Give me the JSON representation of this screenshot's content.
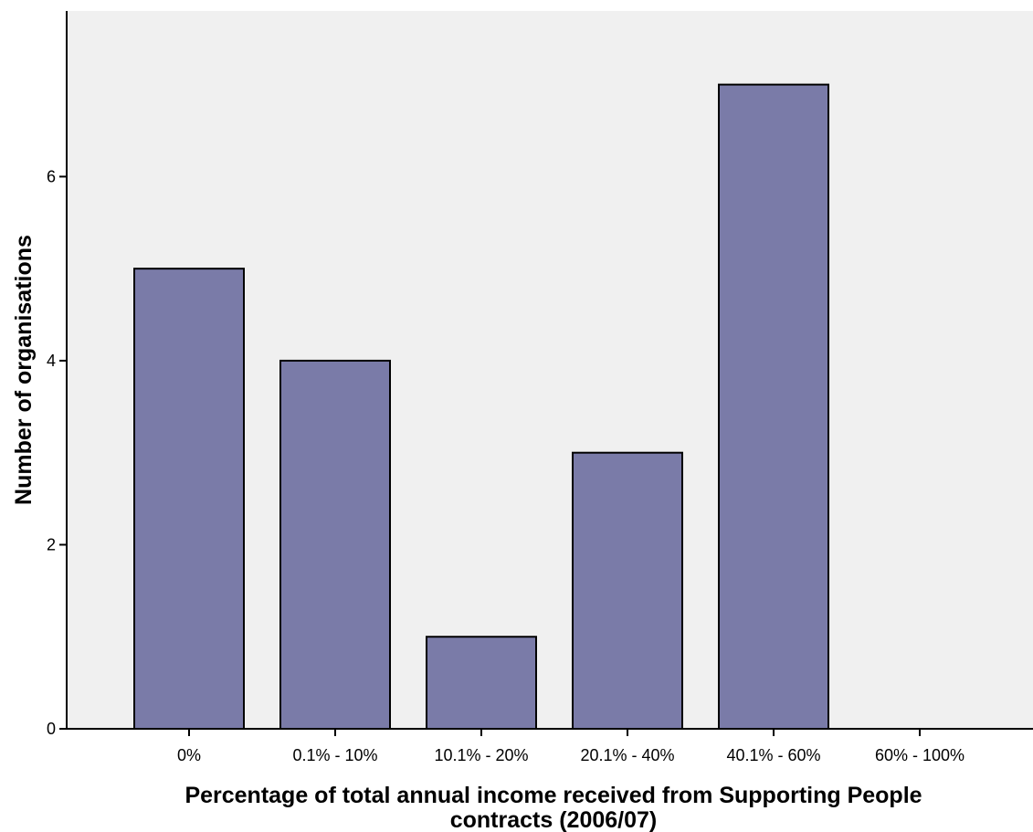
{
  "chart_data": {
    "type": "bar",
    "title": "",
    "xlabel": "Percentage of total annual income received from Supporting People contracts (2006/07)",
    "xlabel_lines": [
      "Percentage of total annual income received from Supporting People",
      "contracts (2006/07)"
    ],
    "ylabel": "Number of organisations",
    "categories": [
      "0%",
      "0.1% - 10%",
      "10.1% - 20%",
      "20.1% - 40%",
      "40.1% - 60%",
      "60% - 100%"
    ],
    "values": [
      5,
      4,
      1,
      3,
      7,
      0
    ],
    "ylim": [
      0,
      7.8
    ],
    "y_ticks": [
      0,
      2,
      4,
      6
    ],
    "y_tick_labels": [
      "0",
      "2",
      "4",
      "6"
    ],
    "grid": false,
    "legend": "none",
    "colors": {
      "bar_fill": "#7a7ba8",
      "bar_stroke": "#000000",
      "plot_background": "#f0f0f0",
      "axis": "#000000"
    }
  }
}
